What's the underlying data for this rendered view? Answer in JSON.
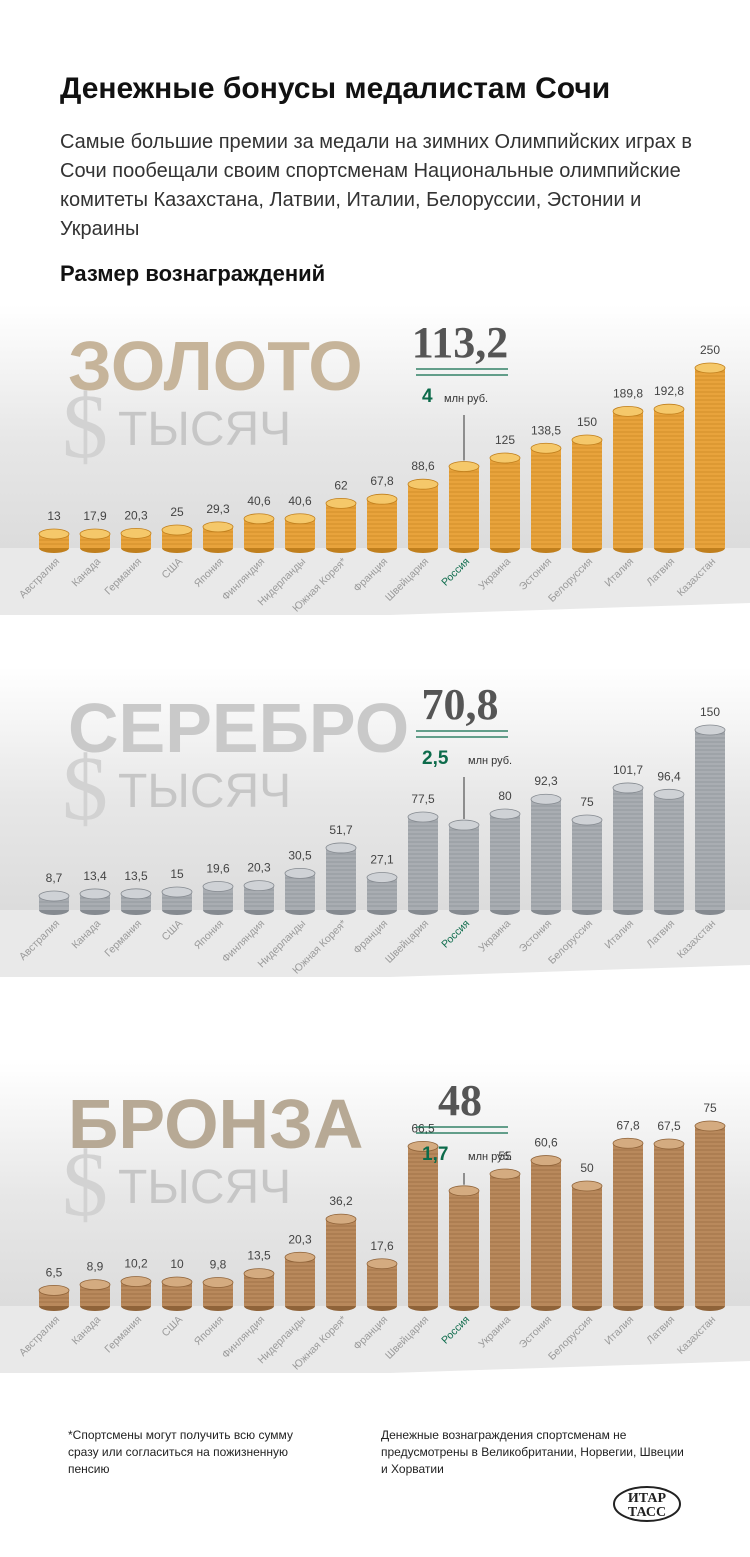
{
  "title": "Денежные бонусы медалистам Сочи",
  "subtitle": "Самые большие премии за медали на зимних Олимпийских играх в Сочи пообещали своим спортсменам Национальные олимпийские комитеты Казахстана, Латвии, Италии, Белоруссии, Эстонии и Украины",
  "subheading": "Размер вознаграждений",
  "unit_label": "тысяч",
  "currency_symbol": "$",
  "russia_suffix": "млн руб.",
  "footnote_left": "*Спортсмены могут получить всю сумму сразу или согласиться на пожизненную пенсию",
  "footnote_right": "Денежные вознаграждения спортсменам не предусмотрены в Великобритании, Норвегии, Швеции и Хорватии",
  "logo_text": [
    "ИТАР",
    "ТАСС"
  ],
  "colors": {
    "gold": "#e8a33c",
    "gold_top": "#f5c86a",
    "gold_edge": "#c07f1d",
    "silver": "#a9adb2",
    "silver_top": "#cfd2d6",
    "silver_edge": "#858a90",
    "bronze": "#b9895c",
    "bronze_top": "#d4ab80",
    "bronze_edge": "#8f6339",
    "russia_green": "#0d6b4b",
    "gold_heading": "#c6b49a",
    "silver_heading": "#c9c9c9",
    "bronze_heading": "#b7a995"
  },
  "chart_data": [
    {
      "type": "bar",
      "title": "ЗОЛОТО",
      "categories": [
        "Австралия",
        "Канада",
        "Германия",
        "США",
        "Япония",
        "Финляндия",
        "Нидерланды",
        "Южная Корея*",
        "Франция",
        "Швейцария",
        "Россия",
        "Украина",
        "Эстония",
        "Белоруссия",
        "Италия",
        "Латвия",
        "Казахстан"
      ],
      "values": [
        13,
        17.9,
        20.3,
        25,
        29.3,
        40.6,
        40.6,
        62,
        67.8,
        88.6,
        113.2,
        125,
        138.5,
        150,
        189.8,
        192.8,
        250
      ],
      "value_labels": [
        "13",
        "17,9",
        "20,3",
        "25",
        "29,3",
        "40,6",
        "40,6",
        "62",
        "67,8",
        "88,6",
        "113,2",
        "125",
        "138,5",
        "150",
        "189,8",
        "192,8",
        "250"
      ],
      "highlight_category": "Россия",
      "highlight_value": "113,2",
      "highlight_rub": "4",
      "ymax": 250
    },
    {
      "type": "bar",
      "title": "СЕРЕБРО",
      "categories": [
        "Австралия",
        "Канада",
        "Германия",
        "США",
        "Япония",
        "Финляндия",
        "Нидерланды",
        "Южная Корея*",
        "Франция",
        "Швейцария",
        "Россия",
        "Украина",
        "Эстония",
        "Белоруссия",
        "Италия",
        "Латвия",
        "Казахстан"
      ],
      "values": [
        8.7,
        13.4,
        13.5,
        15,
        19.6,
        20.3,
        30.5,
        51.7,
        27.1,
        77.5,
        70.8,
        80,
        92.3,
        75,
        101.7,
        96.4,
        150
      ],
      "value_labels": [
        "8,7",
        "13,4",
        "13,5",
        "15",
        "19,6",
        "20,3",
        "30,5",
        "51,7",
        "27,1",
        "77,5",
        "70,8",
        "80",
        "92,3",
        "75",
        "101,7",
        "96,4",
        "150"
      ],
      "highlight_category": "Россия",
      "highlight_value": "70,8",
      "highlight_rub": "2,5",
      "ymax": 150
    },
    {
      "type": "bar",
      "title": "БРОНЗА",
      "categories": [
        "Австралия",
        "Канада",
        "Германия",
        "США",
        "Япония",
        "Финляндия",
        "Нидерланды",
        "Южная Корея*",
        "Франция",
        "Швейцария",
        "Россия",
        "Украина",
        "Эстония",
        "Белоруссия",
        "Италия",
        "Латвия",
        "Казахстан"
      ],
      "values": [
        6.5,
        8.9,
        10.2,
        10,
        9.8,
        13.5,
        20.3,
        36.2,
        17.6,
        66.5,
        48,
        55,
        60.6,
        50,
        67.8,
        67.5,
        75
      ],
      "value_labels": [
        "6,5",
        "8,9",
        "10,2",
        "10",
        "9,8",
        "13,5",
        "20,3",
        "36,2",
        "17,6",
        "66,5",
        "48",
        "55",
        "60,6",
        "50",
        "67,8",
        "67,5",
        "75"
      ],
      "highlight_category": "Россия",
      "highlight_value": "48",
      "highlight_rub": "1,7",
      "ymax": 75
    }
  ]
}
